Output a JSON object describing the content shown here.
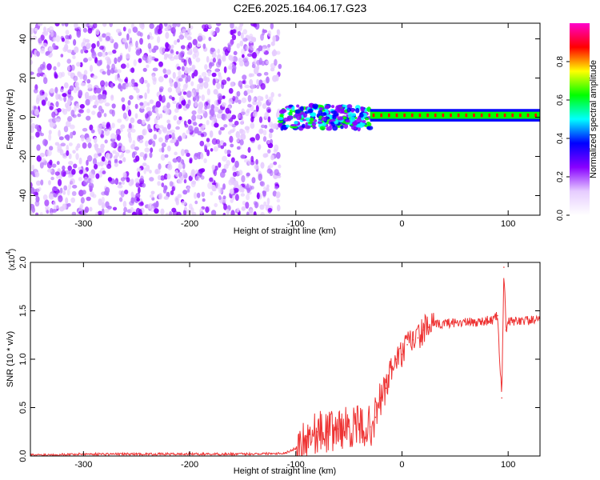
{
  "title": "C2E6.2025.164.06.17.G23",
  "chart_data": [
    {
      "type": "heatmap",
      "xlabel": "Height of straight line (km)",
      "ylabel": "Frequency (Hz)",
      "xlim": [
        -350,
        130
      ],
      "ylim": [
        -50,
        48
      ],
      "x_ticks": [
        -300,
        -200,
        -100,
        0,
        100
      ],
      "y_ticks": [
        -40,
        -20,
        0,
        20,
        40
      ],
      "grid": false,
      "colorbar": {
        "label": "Normalized spectral amplitude",
        "range": [
          0.0,
          1.0
        ],
        "ticks": [
          "0.0",
          "0.2",
          "0.4",
          "0.6",
          "0.8"
        ],
        "colormap": [
          "#ffffff",
          "#e6ccff",
          "#8800ff",
          "#0000ff",
          "#00ffff",
          "#00ff00",
          "#ffff00",
          "#ff0000",
          "#ff00cc"
        ]
      },
      "regions": [
        {
          "x_range": [
            -350,
            -115
          ],
          "frequency_range": [
            -50,
            48
          ],
          "amplitude": 0.1,
          "pattern": "scattered noise"
        },
        {
          "x_range": [
            -115,
            -30
          ],
          "frequency_center": 0,
          "frequency_halfwidth": 6,
          "amplitude": 0.4,
          "pattern": "broad band"
        },
        {
          "x_range": [
            -30,
            130
          ],
          "frequency_center": 1,
          "frequency_halfwidth": 2,
          "amplitude": 0.9,
          "pattern": "narrow tone"
        }
      ]
    },
    {
      "type": "line",
      "xlabel": "Height of straight line (km)",
      "ylabel": "SNR (10 * v/v)",
      "y_multiplier": "(x10",
      "y_multiplier_exp": "4",
      "xlim": [
        -350,
        130
      ],
      "ylim": [
        0,
        2.0
      ],
      "x_ticks": [
        -300,
        -200,
        -100,
        0,
        100
      ],
      "y_ticks": [
        "0.0",
        "0.5",
        "1.0",
        "1.5",
        "2.0"
      ],
      "grid": false,
      "series": [
        {
          "color": "#ee3333",
          "x": [
            -350,
            -300,
            -250,
            -200,
            -150,
            -110,
            -100,
            -90,
            -80,
            -70,
            -60,
            -50,
            -40,
            -30,
            -25,
            -20,
            -15,
            -10,
            -5,
            0,
            5,
            10,
            15,
            20,
            25,
            30,
            40,
            50,
            60,
            70,
            80,
            85,
            90,
            94,
            96,
            98,
            100,
            110,
            120,
            130
          ],
          "values": [
            0.01,
            0.02,
            0.02,
            0.02,
            0.02,
            0.03,
            0.08,
            0.2,
            0.25,
            0.25,
            0.28,
            0.3,
            0.3,
            0.3,
            0.4,
            0.6,
            0.7,
            0.9,
            1.0,
            1.05,
            1.15,
            1.2,
            1.22,
            1.3,
            1.33,
            1.35,
            1.37,
            1.38,
            1.38,
            1.38,
            1.4,
            1.4,
            1.45,
            0.6,
            1.95,
            1.3,
            1.38,
            1.4,
            1.4,
            1.4
          ]
        }
      ]
    }
  ]
}
